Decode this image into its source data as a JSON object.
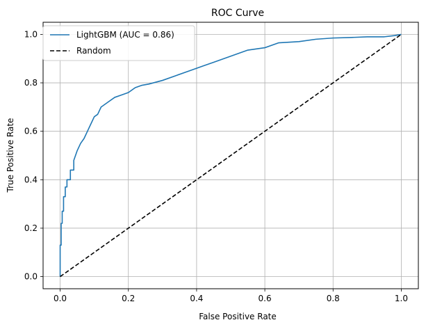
{
  "chart_data": {
    "type": "line",
    "title": "ROC Curve",
    "xlabel": "False Positive Rate",
    "ylabel": "True Positive Rate",
    "xlim": [
      -0.05,
      1.05
    ],
    "ylim": [
      -0.05,
      1.05
    ],
    "xticks": [
      0.0,
      0.2,
      0.4,
      0.6,
      0.8,
      1.0
    ],
    "yticks": [
      0.0,
      0.2,
      0.4,
      0.6,
      0.8,
      1.0
    ],
    "xtick_labels": [
      "0.0",
      "0.2",
      "0.4",
      "0.6",
      "0.8",
      "1.0"
    ],
    "ytick_labels": [
      "0.0",
      "0.2",
      "0.4",
      "0.6",
      "0.8",
      "1.0"
    ],
    "grid": true,
    "legend_position": "top-left",
    "series": [
      {
        "name": "LightGBM (AUC = 0.86)",
        "color": "#1f77b4",
        "style": "solid",
        "x": [
          0.0,
          0.0,
          0.003,
          0.003,
          0.006,
          0.006,
          0.01,
          0.01,
          0.015,
          0.015,
          0.02,
          0.02,
          0.03,
          0.03,
          0.04,
          0.04,
          0.05,
          0.06,
          0.07,
          0.08,
          0.09,
          0.1,
          0.11,
          0.12,
          0.14,
          0.16,
          0.18,
          0.2,
          0.22,
          0.24,
          0.26,
          0.3,
          0.34,
          0.38,
          0.42,
          0.45,
          0.5,
          0.55,
          0.6,
          0.64,
          0.7,
          0.75,
          0.8,
          0.85,
          0.9,
          0.95,
          0.98,
          1.0
        ],
        "y": [
          0.0,
          0.13,
          0.13,
          0.22,
          0.22,
          0.27,
          0.27,
          0.33,
          0.33,
          0.37,
          0.37,
          0.4,
          0.4,
          0.44,
          0.44,
          0.48,
          0.52,
          0.55,
          0.57,
          0.6,
          0.63,
          0.66,
          0.67,
          0.7,
          0.72,
          0.74,
          0.75,
          0.76,
          0.78,
          0.79,
          0.795,
          0.81,
          0.83,
          0.85,
          0.87,
          0.885,
          0.91,
          0.935,
          0.945,
          0.965,
          0.97,
          0.98,
          0.985,
          0.987,
          0.99,
          0.99,
          0.995,
          1.0
        ]
      },
      {
        "name": "Random",
        "color": "#000000",
        "style": "dashed",
        "x": [
          0.0,
          1.0
        ],
        "y": [
          0.0,
          1.0
        ]
      }
    ]
  },
  "colors": {
    "grid": "#b0b0b0",
    "axes": "#000000",
    "legend_border": "#cccccc"
  }
}
